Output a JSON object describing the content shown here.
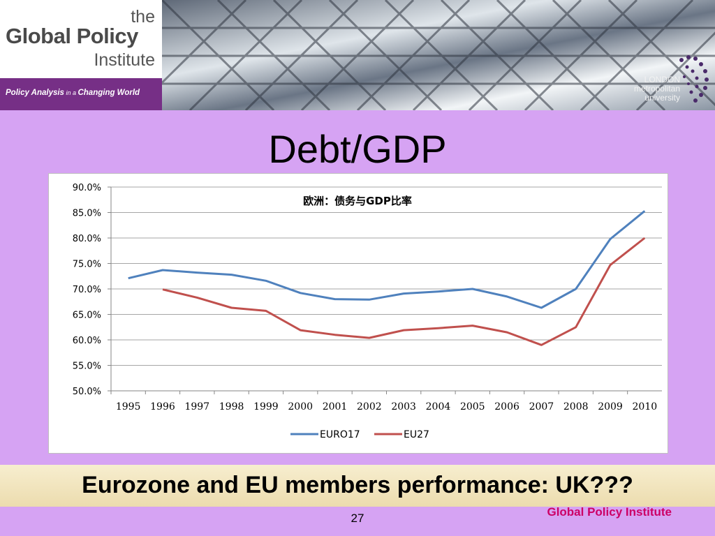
{
  "header": {
    "logo_the": "the",
    "logo_main": "Global Policy",
    "logo_sub": "Institute",
    "tagline_1": "Policy Analysis",
    "tagline_2": " in a ",
    "tagline_3": "Changing World",
    "partner_line1": "LONDON",
    "partner_line2": "metropolitan",
    "partner_line3": "university"
  },
  "slide": {
    "title": "Debt/GDP",
    "subtitle": "Eurozone and EU members performance: UK???",
    "footer_org": "Global Policy Institute",
    "page_number": "27"
  },
  "colors": {
    "euro17": "#4f81bd",
    "eu27": "#c0504d",
    "background": "#d6a3f3",
    "footer_org": "#cc0066"
  },
  "chart_data": {
    "type": "line",
    "title": "欧洲：债务与GDP比率",
    "x": [
      "1995",
      "1996",
      "1997",
      "1998",
      "1999",
      "2000",
      "2001",
      "2002",
      "2003",
      "2004",
      "2005",
      "2006",
      "2007",
      "2008",
      "2009",
      "2010"
    ],
    "y_ticks": [
      "90.0%",
      "85.0%",
      "80.0%",
      "75.0%",
      "70.0%",
      "65.0%",
      "60.0%",
      "55.0%",
      "50.0%"
    ],
    "ylim": [
      50,
      90
    ],
    "series": [
      {
        "name": "EURO17",
        "values": [
          72.1,
          73.7,
          73.2,
          72.8,
          71.6,
          69.2,
          68.0,
          67.9,
          69.1,
          69.5,
          70.0,
          68.5,
          66.3,
          70.0,
          79.8,
          85.3
        ]
      },
      {
        "name": "EU27",
        "values": [
          null,
          69.9,
          68.3,
          66.3,
          65.7,
          61.9,
          61.0,
          60.4,
          61.9,
          62.3,
          62.8,
          61.5,
          59.0,
          62.5,
          74.7,
          80.0
        ]
      }
    ],
    "grid": true,
    "legend": "bottom"
  }
}
